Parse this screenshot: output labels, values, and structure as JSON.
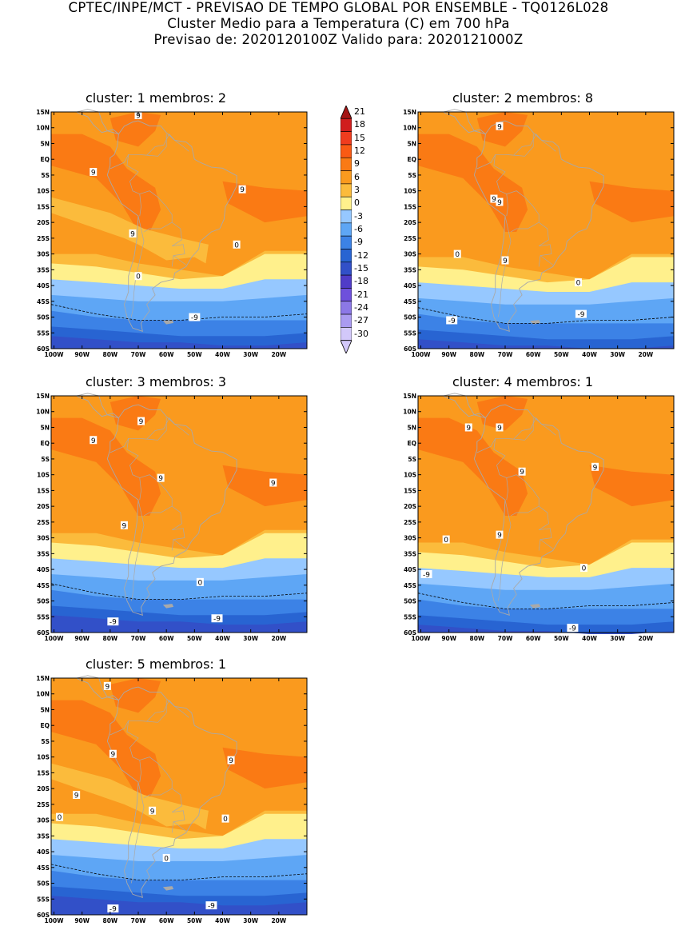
{
  "header": {
    "line1": "CPTEC/INPE/MCT - PREVISAO DE TEMPO GLOBAL POR ENSEMBLE - TQ0126L028",
    "line2": "Cluster Medio para a Temperatura (C) em 700 hPa",
    "line3": "Previsao de: 2020120100Z   Valido para: 2020121000Z"
  },
  "lat_labels": [
    "15N",
    "10N",
    "5N",
    "EQ",
    "5S",
    "10S",
    "15S",
    "20S",
    "25S",
    "30S",
    "35S",
    "40S",
    "45S",
    "50S",
    "55S",
    "60S"
  ],
  "lon_labels": [
    "100W",
    "90W",
    "80W",
    "70W",
    "60W",
    "50W",
    "40W",
    "30W",
    "20W"
  ],
  "colorbar": {
    "labels": [
      "21",
      "18",
      "15",
      "12",
      "9",
      "6",
      "3",
      "0",
      "-3",
      "-6",
      "-9",
      "-12",
      "-15",
      "-18",
      "-21",
      "-24",
      "-27",
      "-30"
    ],
    "colors": [
      "#a41414",
      "#d01e1e",
      "#f03c1e",
      "#fa5a14",
      "#fa7a14",
      "#fa9a1e",
      "#fbbb3c",
      "#fff08c",
      "#96c8ff",
      "#5ea6f5",
      "#3c82e6",
      "#2864d2",
      "#3250c8",
      "#503cc8",
      "#6e50dc",
      "#8c78e6",
      "#aa9bf0",
      "#d2c8fa"
    ]
  },
  "clusters": [
    {
      "title": "cluster: 1   membros: 2",
      "labels": [
        {
          "t": "9",
          "x": -70,
          "y": 14
        },
        {
          "t": "9",
          "x": -86,
          "y": -4
        },
        {
          "t": "9",
          "x": -33,
          "y": -9.5
        },
        {
          "t": "9",
          "x": -72,
          "y": -23.5
        },
        {
          "t": "0",
          "x": -35,
          "y": -27
        },
        {
          "t": "0",
          "x": -70,
          "y": -37
        },
        {
          "t": "-9",
          "x": -50,
          "y": -50
        }
      ]
    },
    {
      "title": "cluster: 2   membros: 8",
      "labels": [
        {
          "t": "9",
          "x": -72,
          "y": 10.5
        },
        {
          "t": "9",
          "x": -74,
          "y": -12.5
        },
        {
          "t": "9",
          "x": -72,
          "y": -13.5
        },
        {
          "t": "9",
          "x": -70,
          "y": -32
        },
        {
          "t": "0",
          "x": -87,
          "y": -30
        },
        {
          "t": "0",
          "x": -44,
          "y": -39
        },
        {
          "t": "-9",
          "x": -89,
          "y": -51
        },
        {
          "t": "-9",
          "x": -43,
          "y": -49
        }
      ]
    },
    {
      "title": "cluster: 3   membros: 3",
      "labels": [
        {
          "t": "9",
          "x": -69,
          "y": 7
        },
        {
          "t": "9",
          "x": -86,
          "y": 1
        },
        {
          "t": "9",
          "x": -62,
          "y": -11
        },
        {
          "t": "9",
          "x": -22,
          "y": -12.5
        },
        {
          "t": "9",
          "x": -75,
          "y": -26
        },
        {
          "t": "0",
          "x": -48,
          "y": -44
        },
        {
          "t": "-9",
          "x": -79,
          "y": -56.5
        },
        {
          "t": "-9",
          "x": -42,
          "y": -55.5
        }
      ]
    },
    {
      "title": "cluster: 4   membros: 1",
      "labels": [
        {
          "t": "9",
          "x": -83,
          "y": 5
        },
        {
          "t": "9",
          "x": -72,
          "y": 5
        },
        {
          "t": "9",
          "x": -64,
          "y": -9
        },
        {
          "t": "9",
          "x": -38,
          "y": -7.5
        },
        {
          "t": "9",
          "x": -72,
          "y": -29
        },
        {
          "t": "0",
          "x": -91,
          "y": -30.5
        },
        {
          "t": "0",
          "x": -42,
          "y": -39.5
        },
        {
          "t": "-9",
          "x": -98,
          "y": -41.5
        },
        {
          "t": "-9",
          "x": -46,
          "y": -58.5
        }
      ]
    },
    {
      "title": "cluster: 5   membros: 1",
      "labels": [
        {
          "t": "9",
          "x": -81,
          "y": 12.5
        },
        {
          "t": "9",
          "x": -79,
          "y": -9
        },
        {
          "t": "9",
          "x": -37,
          "y": -11
        },
        {
          "t": "9",
          "x": -92,
          "y": -22
        },
        {
          "t": "9",
          "x": -65,
          "y": -27
        },
        {
          "t": "0",
          "x": -98,
          "y": -29
        },
        {
          "t": "0",
          "x": -39,
          "y": -29.5
        },
        {
          "t": "0",
          "x": -60,
          "y": -42
        },
        {
          "t": "-9",
          "x": -79,
          "y": -58
        },
        {
          "t": "-9",
          "x": -44,
          "y": -57
        }
      ]
    }
  ]
}
